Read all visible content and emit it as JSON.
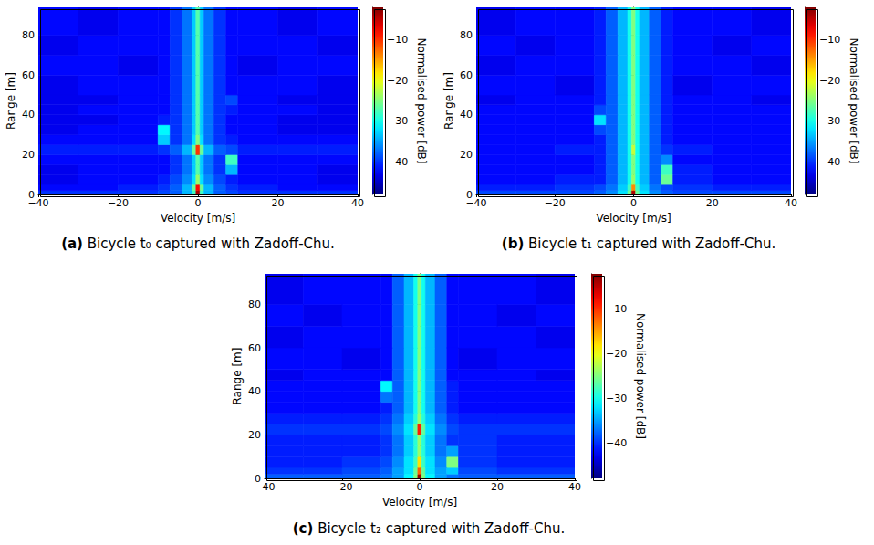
{
  "chart_data": [
    {
      "type": "heatmap",
      "caption": "(a) Bicycle t₀ captured with Zadoff-Chu.",
      "x_label": "Velocity [m/s]",
      "y_label": "Range [m]",
      "xlim": [
        -40,
        40
      ],
      "xticks": [
        {
          "value": -40,
          "label": "−40"
        },
        {
          "value": -20,
          "label": "−20"
        },
        0,
        20,
        40
      ],
      "ylim": [
        0,
        94
      ],
      "yticks": [
        0,
        20,
        40,
        60,
        80
      ],
      "x_edges": [
        -40,
        -30,
        -20,
        -10,
        -7,
        -4,
        -1.5,
        -0.5,
        0.5,
        1.5,
        4,
        7,
        10,
        20,
        30,
        40
      ],
      "y_edges": [
        0,
        2,
        5,
        10,
        15,
        20,
        25,
        30,
        35,
        40,
        45,
        50,
        60,
        70,
        80,
        94
      ],
      "cells": [
        [
          -40,
          -40,
          -40,
          -39,
          -38,
          -34,
          -28,
          -4,
          -28,
          -34,
          -38,
          -39,
          -40,
          -40,
          -40
        ],
        [
          -42,
          -42,
          -41,
          -40,
          -38,
          -34,
          -26,
          -8,
          -26,
          -34,
          -38,
          -40,
          -41,
          -42,
          -42
        ],
        [
          -43,
          -42,
          -42,
          -41,
          -39,
          -36,
          -32,
          -24,
          -32,
          -36,
          -39,
          -41,
          -42,
          -42,
          -43
        ],
        [
          -43,
          -42,
          -42,
          -42,
          -40,
          -37,
          -33,
          -27,
          -33,
          -37,
          -40,
          -34,
          -42,
          -42,
          -43
        ],
        [
          -42,
          -42,
          -42,
          -42,
          -40,
          -37,
          -33,
          -27,
          -33,
          -37,
          -40,
          -28,
          -42,
          -42,
          -42
        ],
        [
          -41,
          -41,
          -41,
          -40,
          -38,
          -34,
          -26,
          -10,
          -26,
          -34,
          -38,
          -39,
          -41,
          -41,
          -41
        ],
        [
          -42,
          -42,
          -42,
          -33,
          -40,
          -37,
          -32,
          -25,
          -32,
          -37,
          -40,
          -41,
          -42,
          -42,
          -42
        ],
        [
          -43,
          -42,
          -42,
          -31,
          -40,
          -37,
          -33,
          -27,
          -33,
          -37,
          -40,
          -42,
          -42,
          -43,
          -43
        ],
        [
          -43,
          -43,
          -42,
          -41,
          -40,
          -37,
          -33,
          -27,
          -33,
          -37,
          -40,
          -42,
          -42,
          -43,
          -43
        ],
        [
          -43,
          -42,
          -42,
          -42,
          -40,
          -37,
          -33,
          -27,
          -33,
          -37,
          -40,
          -41,
          -42,
          -42,
          -43
        ],
        [
          -43,
          -43,
          -42,
          -42,
          -40,
          -37,
          -33,
          -27,
          -33,
          -37,
          -40,
          -39,
          -42,
          -43,
          -43
        ],
        [
          -43,
          -42,
          -42,
          -42,
          -40,
          -37,
          -33,
          -27,
          -33,
          -37,
          -40,
          -42,
          -42,
          -42,
          -43
        ],
        [
          -42,
          -42,
          -43,
          -42,
          -40,
          -37,
          -33,
          -27,
          -33,
          -37,
          -40,
          -42,
          -43,
          -42,
          -42
        ],
        [
          -43,
          -42,
          -42,
          -42,
          -40,
          -37,
          -33,
          -27,
          -33,
          -37,
          -40,
          -42,
          -42,
          -42,
          -43
        ],
        [
          -42,
          -43,
          -42,
          -42,
          -40,
          -37,
          -33,
          -27,
          -33,
          -37,
          -40,
          -42,
          -42,
          -43,
          -42
        ]
      ],
      "colorbar": {
        "label": "Normalised power [dB]",
        "range": [
          -48,
          -2
        ],
        "ticks": [
          {
            "value": -40,
            "label": "−40"
          },
          {
            "value": -30,
            "label": "−30"
          },
          {
            "value": -20,
            "label": "−20"
          },
          {
            "value": -10,
            "label": "−10"
          }
        ]
      }
    },
    {
      "type": "heatmap",
      "caption": "(b) Bicycle t₁ captured with Zadoff-Chu.",
      "x_label": "Velocity [m/s]",
      "y_label": "Range [m]",
      "xlim": [
        -40,
        40
      ],
      "xticks": [
        {
          "value": -40,
          "label": "−40"
        },
        {
          "value": -20,
          "label": "−20"
        },
        0,
        20,
        40
      ],
      "ylim": [
        0,
        94
      ],
      "yticks": [
        0,
        20,
        40,
        60,
        80
      ],
      "x_edges": [
        -40,
        -30,
        -20,
        -10,
        -7,
        -4,
        -1.5,
        -0.5,
        0.5,
        1.5,
        4,
        7,
        10,
        20,
        30,
        40
      ],
      "y_edges": [
        0,
        2,
        5,
        10,
        15,
        20,
        25,
        30,
        35,
        40,
        45,
        50,
        60,
        70,
        80,
        94
      ],
      "cells": [
        [
          -39,
          -39,
          -39,
          -38,
          -36,
          -32,
          -26,
          -4,
          -26,
          -32,
          -36,
          -38,
          -39,
          -39,
          -39
        ],
        [
          -41,
          -41,
          -40,
          -39,
          -37,
          -33,
          -28,
          -14,
          -28,
          -33,
          -37,
          -39,
          -40,
          -41,
          -41
        ],
        [
          -42,
          -42,
          -41,
          -41,
          -38,
          -34,
          -30,
          -24,
          -30,
          -34,
          -38,
          -26,
          -41,
          -42,
          -42
        ],
        [
          -42,
          -42,
          -42,
          -41,
          -38,
          -34,
          -30,
          -25,
          -30,
          -34,
          -38,
          -28,
          -41,
          -42,
          -42
        ],
        [
          -42,
          -42,
          -42,
          -41,
          -38,
          -34,
          -30,
          -25,
          -30,
          -34,
          -38,
          -36,
          -42,
          -42,
          -42
        ],
        [
          -42,
          -42,
          -41,
          -41,
          -38,
          -34,
          -30,
          -22,
          -30,
          -34,
          -38,
          -40,
          -41,
          -42,
          -42
        ],
        [
          -42,
          -42,
          -42,
          -41,
          -38,
          -34,
          -30,
          -25,
          -30,
          -34,
          -38,
          -41,
          -42,
          -42,
          -42
        ],
        [
          -42,
          -42,
          -42,
          -39,
          -38,
          -34,
          -30,
          -25,
          -30,
          -34,
          -38,
          -41,
          -42,
          -42,
          -42
        ],
        [
          -42,
          -42,
          -42,
          -32,
          -38,
          -34,
          -30,
          -25,
          -30,
          -34,
          -38,
          -41,
          -42,
          -42,
          -42
        ],
        [
          -42,
          -42,
          -42,
          -39,
          -38,
          -34,
          -30,
          -25,
          -30,
          -34,
          -38,
          -41,
          -42,
          -42,
          -42
        ],
        [
          -43,
          -42,
          -42,
          -41,
          -38,
          -34,
          -30,
          -25,
          -30,
          -34,
          -38,
          -41,
          -42,
          -42,
          -43
        ],
        [
          -42,
          -42,
          -43,
          -41,
          -38,
          -34,
          -30,
          -25,
          -30,
          -34,
          -38,
          -41,
          -43,
          -42,
          -42
        ],
        [
          -43,
          -42,
          -42,
          -41,
          -38,
          -34,
          -30,
          -25,
          -30,
          -34,
          -38,
          -41,
          -42,
          -42,
          -43
        ],
        [
          -42,
          -43,
          -42,
          -41,
          -38,
          -34,
          -30,
          -25,
          -30,
          -34,
          -38,
          -41,
          -42,
          -43,
          -42
        ],
        [
          -43,
          -42,
          -42,
          -41,
          -38,
          -34,
          -30,
          -25,
          -30,
          -34,
          -38,
          -41,
          -42,
          -42,
          -43
        ]
      ],
      "colorbar": {
        "label": "Normalised power [dB]",
        "range": [
          -48,
          -2
        ],
        "ticks": [
          {
            "value": -40,
            "label": "−40"
          },
          {
            "value": -30,
            "label": "−30"
          },
          {
            "value": -20,
            "label": "−20"
          },
          {
            "value": -10,
            "label": "−10"
          }
        ]
      }
    },
    {
      "type": "heatmap",
      "caption": "(c) Bicycle t₂ captured with Zadoff-Chu.",
      "x_label": "Velocity [m/s]",
      "y_label": "Range [m]",
      "xlim": [
        -40,
        40
      ],
      "xticks": [
        {
          "value": -40,
          "label": "−40"
        },
        {
          "value": -20,
          "label": "−20"
        },
        0,
        20,
        40
      ],
      "ylim": [
        0,
        94
      ],
      "yticks": [
        0,
        20,
        40,
        60,
        80
      ],
      "x_edges": [
        -40,
        -30,
        -20,
        -10,
        -7,
        -4,
        -1.5,
        -0.5,
        0.5,
        1.5,
        4,
        7,
        10,
        20,
        30,
        40
      ],
      "y_edges": [
        0,
        2,
        5,
        10,
        15,
        20,
        25,
        30,
        35,
        40,
        45,
        50,
        60,
        70,
        80,
        94
      ],
      "cells": [
        [
          -38,
          -38,
          -38,
          -37,
          -35,
          -31,
          -25,
          -3,
          -25,
          -31,
          -35,
          -37,
          -38,
          -38,
          -38
        ],
        [
          -40,
          -40,
          -39,
          -38,
          -35,
          -32,
          -26,
          -12,
          -26,
          -32,
          -35,
          -33,
          -39,
          -40,
          -40
        ],
        [
          -41,
          -41,
          -40,
          -39,
          -36,
          -32,
          -28,
          -18,
          -28,
          -32,
          -36,
          -25,
          -40,
          -41,
          -41
        ],
        [
          -41,
          -41,
          -41,
          -40,
          -37,
          -33,
          -29,
          -24,
          -29,
          -33,
          -37,
          -35,
          -40,
          -41,
          -41
        ],
        [
          -41,
          -41,
          -41,
          -40,
          -37,
          -33,
          -29,
          -24,
          -29,
          -33,
          -37,
          -40,
          -40,
          -41,
          -41
        ],
        [
          -40,
          -40,
          -40,
          -39,
          -36,
          -32,
          -26,
          -9,
          -26,
          -32,
          -36,
          -39,
          -40,
          -40,
          -40
        ],
        [
          -41,
          -41,
          -41,
          -40,
          -37,
          -33,
          -29,
          -24,
          -29,
          -33,
          -37,
          -40,
          -41,
          -41,
          -41
        ],
        [
          -42,
          -42,
          -42,
          -41,
          -38,
          -34,
          -30,
          -25,
          -30,
          -34,
          -38,
          -41,
          -42,
          -42,
          -42
        ],
        [
          -42,
          -42,
          -42,
          -37,
          -38,
          -34,
          -30,
          -25,
          -30,
          -34,
          -38,
          -41,
          -42,
          -42,
          -42
        ],
        [
          -42,
          -42,
          -42,
          -31,
          -38,
          -34,
          -30,
          -25,
          -30,
          -34,
          -38,
          -41,
          -42,
          -42,
          -42
        ],
        [
          -43,
          -42,
          -42,
          -42,
          -38,
          -34,
          -30,
          -25,
          -30,
          -34,
          -38,
          -42,
          -42,
          -42,
          -43
        ],
        [
          -42,
          -42,
          -43,
          -42,
          -38,
          -34,
          -30,
          -25,
          -30,
          -34,
          -38,
          -42,
          -43,
          -42,
          -42
        ],
        [
          -43,
          -42,
          -42,
          -42,
          -38,
          -34,
          -30,
          -25,
          -30,
          -34,
          -38,
          -42,
          -42,
          -42,
          -43
        ],
        [
          -42,
          -43,
          -42,
          -42,
          -38,
          -34,
          -30,
          -25,
          -30,
          -34,
          -38,
          -42,
          -42,
          -43,
          -42
        ],
        [
          -43,
          -42,
          -42,
          -42,
          -38,
          -34,
          -30,
          -25,
          -30,
          -34,
          -38,
          -42,
          -42,
          -42,
          -43
        ]
      ],
      "colorbar": {
        "label": "Normalised power [dB]",
        "range": [
          -48,
          -2
        ],
        "ticks": [
          {
            "value": -40,
            "label": "−40"
          },
          {
            "value": -30,
            "label": "−30"
          },
          {
            "value": -20,
            "label": "−20"
          },
          {
            "value": -10,
            "label": "−10"
          }
        ]
      }
    }
  ]
}
